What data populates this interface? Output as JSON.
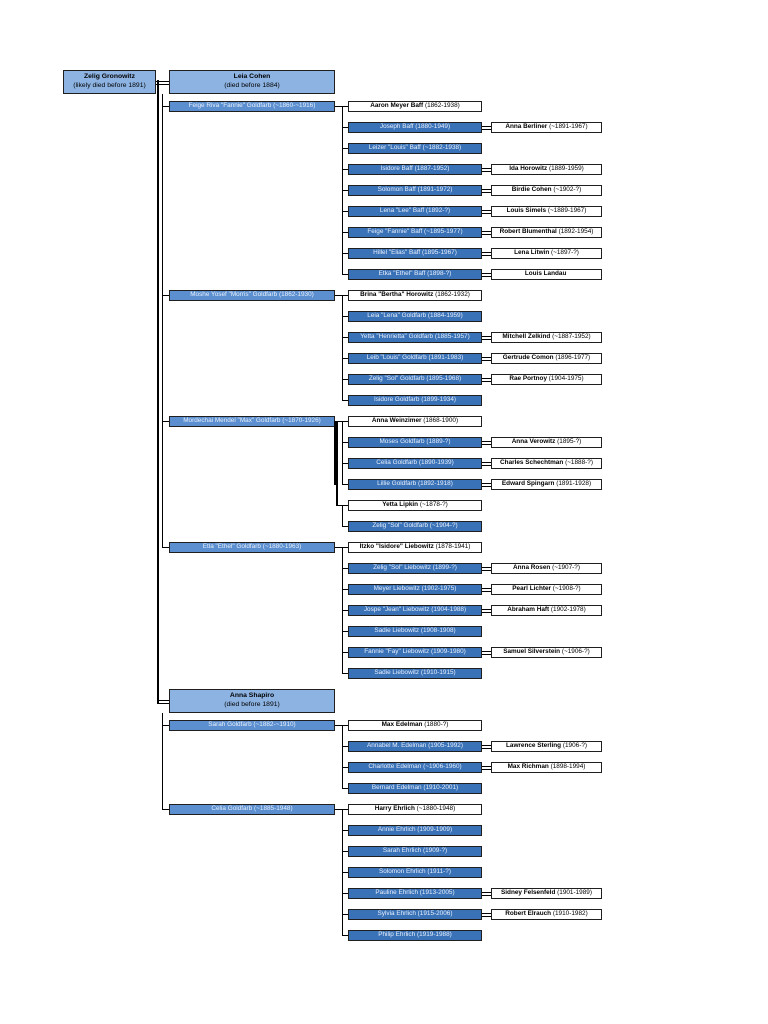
{
  "root": {
    "name": "Zelig Gronowitz",
    "note": "(likely died before 1891)"
  },
  "wives": [
    {
      "name": "Leia Cohen",
      "note": "(died before 1884)",
      "children": [
        {
          "name": "Feige Riva \"Fannie\" Goldfarb",
          "dates": "(~1860-~1916)",
          "spouse": {
            "name": "Aaron Meyer Baff",
            "dates": "(1862-1938)"
          },
          "children": [
            {
              "name": "Joseph Baff",
              "dates": "(1880-1949)",
              "spouse": {
                "name": "Anna Berliner",
                "dates": "(~1891-1967)"
              }
            },
            {
              "name": "Leizer \"Louis\" Baff",
              "dates": "(~1882-1938)",
              "spouse": null
            },
            {
              "name": "Isidore Baff",
              "dates": "(1887-1952)",
              "spouse": {
                "name": "Ida Horowitz",
                "dates": "(1889-1959)"
              }
            },
            {
              "name": "Solomon Baff",
              "dates": "(1891-1972)",
              "spouse": {
                "name": "Birdie Cohen",
                "dates": "(~1902-?)"
              }
            },
            {
              "name": "Lena \"Lee\" Baff",
              "dates": "(1892-?)",
              "spouse": {
                "name": "Louis Simels",
                "dates": "(~1889-1967)"
              }
            },
            {
              "name": "Feige \"Fannie\" Baff",
              "dates": "(~1895-1977)",
              "spouse": {
                "name": "Robert Blumenthal",
                "dates": "(1892-1954)"
              }
            },
            {
              "name": "Hillel \"Elias\" Baff",
              "dates": "(1895-1967)",
              "spouse": {
                "name": "Lena Litwin",
                "dates": "(~1897-?)"
              }
            },
            {
              "name": "Etka \"Ethel\" Baff",
              "dates": "(1898-?)",
              "spouse": {
                "name": "Louis Landau",
                "dates": ""
              }
            }
          ]
        },
        {
          "name": "Moshe Yosef \"Morris\" Goldfarb",
          "dates": "(1862-1930)",
          "spouse": {
            "name": "Brina \"Bertha\" Horowitz",
            "dates": "(1862-1932)"
          },
          "children": [
            {
              "name": "Leia \"Lena\" Goldfarb",
              "dates": "(1884-1959)",
              "spouse": null
            },
            {
              "name": "Yetta \"Henrietta\" Goldfarb",
              "dates": "(1885-1957)",
              "spouse": {
                "name": "Mitchell Zelkind",
                "dates": "(~1887-1952)"
              }
            },
            {
              "name": "Leib \"Louis\" Goldfarb",
              "dates": "(1891-1983)",
              "spouse": {
                "name": "Gertrude Comon",
                "dates": "(1896-1977)"
              }
            },
            {
              "name": "Zelig \"Sol\" Goldfarb",
              "dates": "(1895-1968)",
              "spouse": {
                "name": "Rae Portnoy",
                "dates": "(1904-1975)"
              }
            },
            {
              "name": "Isidore Goldfarb",
              "dates": "(1899-1934)",
              "spouse": null
            }
          ]
        },
        {
          "name": "Mordechai Mendel \"Max\" Goldfarb",
          "dates": "(~1870-1926)",
          "spouse": {
            "name": "Anna Weinzimer",
            "dates": "(1868-1900)"
          },
          "children": [
            {
              "name": "Moses Goldfarb",
              "dates": "(1889-?)",
              "spouse": {
                "name": "Anna Verowitz",
                "dates": "(1895-?)"
              }
            },
            {
              "name": "Celia Goldfarb",
              "dates": "(1890-1939)",
              "spouse": {
                "name": "Charles Schechtman",
                "dates": "(~1888-?)"
              }
            },
            {
              "name": "Lillie Goldfarb",
              "dates": "(1892-1918)",
              "spouse": {
                "name": "Edward Spingarn",
                "dates": "(1891-1928)"
              }
            }
          ],
          "spouse2": {
            "name": "Yetta Lipkin",
            "dates": "(~1878-?)"
          },
          "children2": [
            {
              "name": "Zelig \"Sol\" Goldfarb",
              "dates": "(~1904-?)",
              "spouse": null
            }
          ]
        },
        {
          "name": "Etla \"Ethel\" Goldfarb",
          "dates": "(~1880-1963)",
          "spouse": {
            "name": "Itzko \"Isidore\" Liebowitz",
            "dates": "(1878-1941)"
          },
          "children": [
            {
              "name": "Zelig \"Sol\" Liebowitz",
              "dates": "(1899-?)",
              "spouse": {
                "name": "Anna Rosen",
                "dates": "(~1907-?)"
              }
            },
            {
              "name": "Meyer Liebowitz",
              "dates": "(1902-1975)",
              "spouse": {
                "name": "Pearl Lichter",
                "dates": "(~1908-?)"
              }
            },
            {
              "name": "Jospe \"Jean\" Liebowitz",
              "dates": "(1904-1988)",
              "spouse": {
                "name": "Abraham Haft",
                "dates": "(1902-1978)"
              }
            },
            {
              "name": "Sadie Liebowitz",
              "dates": "(1908-1908)",
              "spouse": null
            },
            {
              "name": "Fannie \"Fay\" Liebowitz",
              "dates": "(1909-1980)",
              "spouse": {
                "name": "Samuel Silverstein",
                "dates": "(~1906-?)"
              }
            },
            {
              "name": "Sadie Liebowitz",
              "dates": "(1910-1915)",
              "spouse": null
            }
          ]
        }
      ]
    },
    {
      "name": "Anna Shapiro",
      "note": "(died before 1891)",
      "children": [
        {
          "name": "Sarah Goldfarb",
          "dates": "(~1882-~1910)",
          "spouse": {
            "name": "Max Edelman",
            "dates": "(1880-?)"
          },
          "children": [
            {
              "name": "Annabel M. Edelman",
              "dates": "(1905-1992)",
              "spouse": {
                "name": "Lawrence Sterling",
                "dates": "(1906-?)"
              }
            },
            {
              "name": "Charlotte Edelman",
              "dates": "(~1906-1960)",
              "spouse": {
                "name": "Max Richman",
                "dates": "(1898-1994)"
              }
            },
            {
              "name": "Bernard Edelman",
              "dates": "(1910-2001)",
              "spouse": null
            }
          ]
        },
        {
          "name": "Celia Goldfarb",
          "dates": "(~1885-1948)",
          "spouse": {
            "name": "Harry Ehrlich",
            "dates": "(~1880-1948)"
          },
          "children": [
            {
              "name": "Annie Ehrlich",
              "dates": "(1909-1909)",
              "spouse": null
            },
            {
              "name": "Sarah Ehrlich",
              "dates": "(1909-?)",
              "spouse": null
            },
            {
              "name": "Solomon Ehrlich",
              "dates": "(1911-?)",
              "spouse": null
            },
            {
              "name": "Pauline Ehrlich",
              "dates": "(1913-2005)",
              "spouse": {
                "name": "Sidney Felsenfeld",
                "dates": "(1901-1989)"
              }
            },
            {
              "name": "Sylvia Ehrlich",
              "dates": "(1915-2006)",
              "spouse": {
                "name": "Robert Elrauch",
                "dates": "(1910-1982)"
              }
            },
            {
              "name": "Philip Ehrlich",
              "dates": "(1919-1988)",
              "spouse": null
            }
          ]
        }
      ]
    }
  ]
}
